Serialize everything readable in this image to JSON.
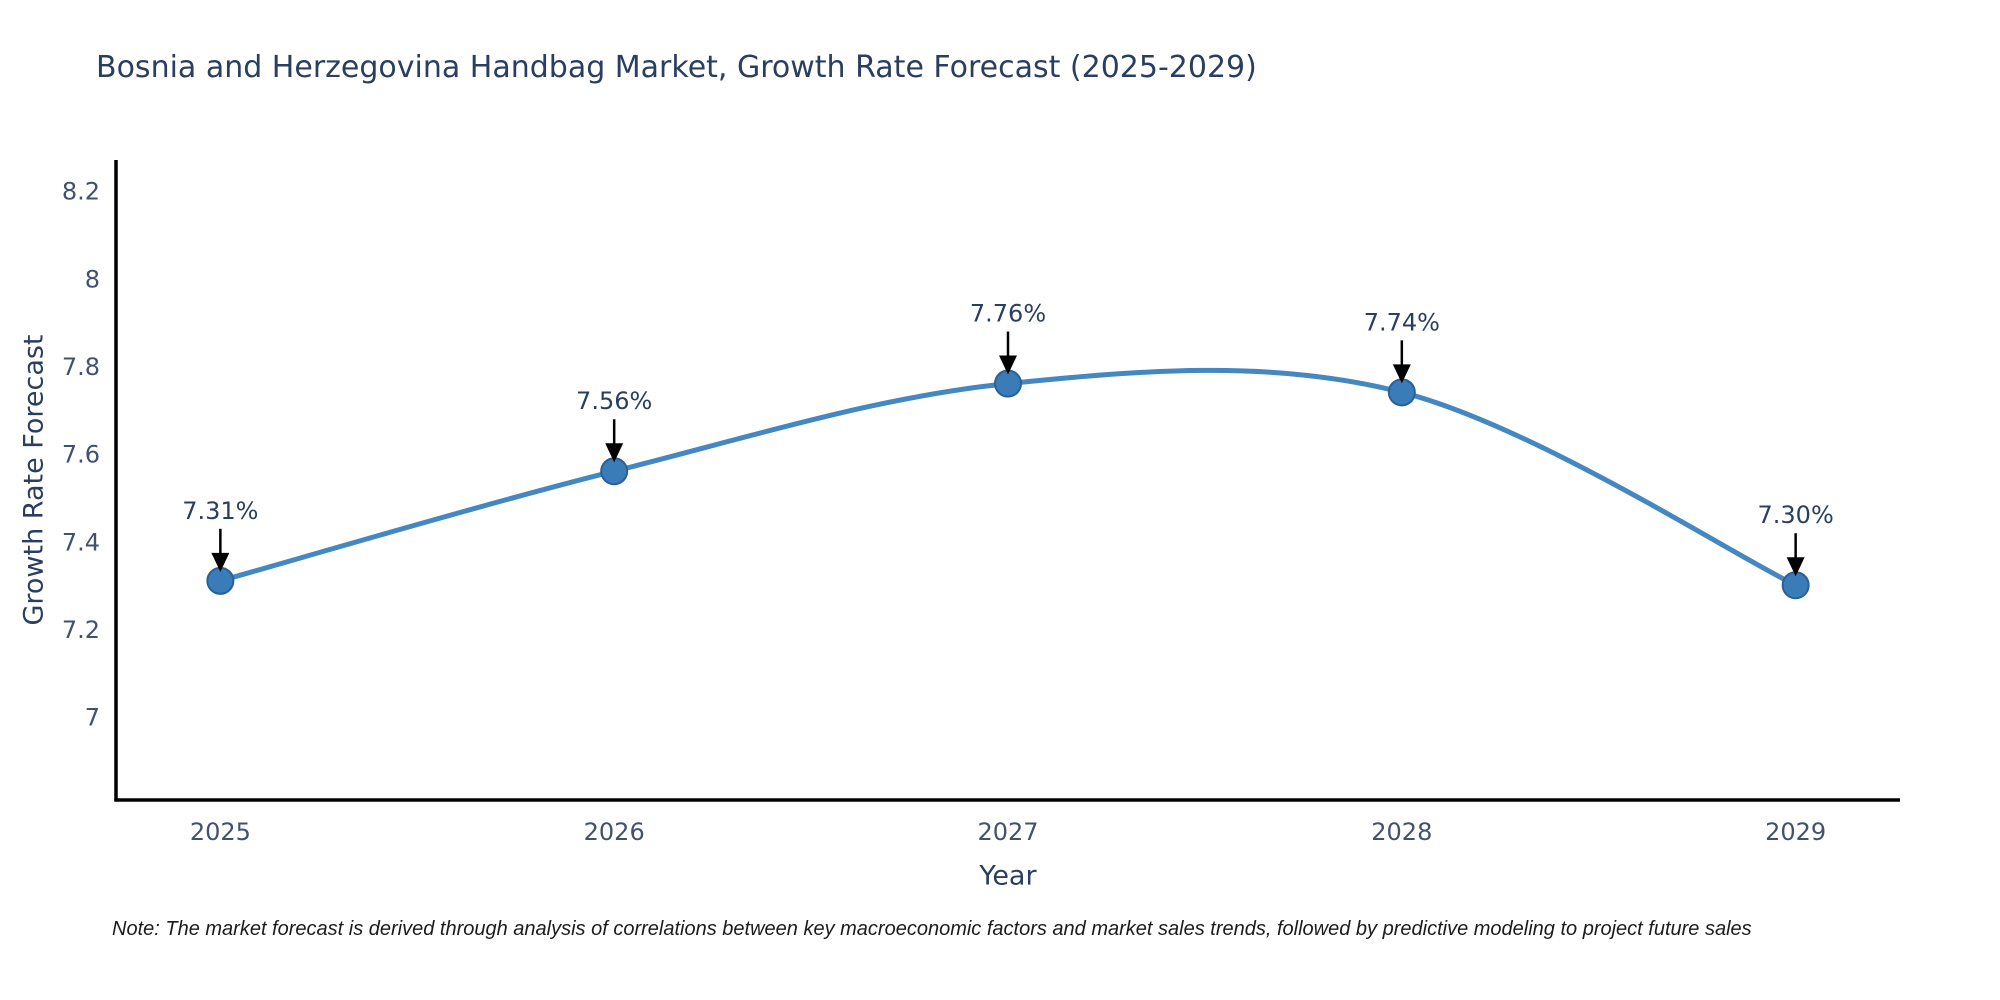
{
  "note": "Note: The market forecast is derived through analysis of correlations between key macroeconomic factors and market sales trends, followed by predictive modeling to project future sales",
  "chart_data": {
    "type": "line",
    "title": "Bosnia and Herzegovina Handbag Market, Growth Rate Forecast (2025-2029)",
    "xlabel": "Year",
    "ylabel": "Growth Rate Forecast",
    "x": [
      2025,
      2026,
      2027,
      2028,
      2029
    ],
    "categories": [
      "2025",
      "2026",
      "2027",
      "2028",
      "2029"
    ],
    "series": [
      {
        "name": "Growth Rate Forecast",
        "values": [
          7.31,
          7.56,
          7.76,
          7.74,
          7.3
        ],
        "point_labels": [
          "7.31%",
          "7.56%",
          "7.76%",
          "7.74%",
          "7.30%"
        ]
      }
    ],
    "line_shape": "spline",
    "markers": true,
    "annotations_with_arrows": true,
    "yticks": [
      7,
      7.2,
      7.4,
      7.6,
      7.8,
      8,
      8.2
    ],
    "ytick_labels": [
      "7",
      "7.2",
      "7.4",
      "7.6",
      "7.8",
      "8",
      "8.2"
    ],
    "ylim": [
      6.81,
      8.27
    ],
    "x_pad_years": 0.265,
    "grid": false,
    "legend": false,
    "colors": {
      "line": "#4587c1",
      "marker": "#3a7cb8",
      "marker_edge": "#2a6096",
      "axis": "#000000",
      "title_text": "#2a3f5f",
      "tick_text": "#42516d",
      "annotation_text": "#2a3f5f",
      "arrow": "#000000",
      "background": "#ffffff"
    }
  }
}
